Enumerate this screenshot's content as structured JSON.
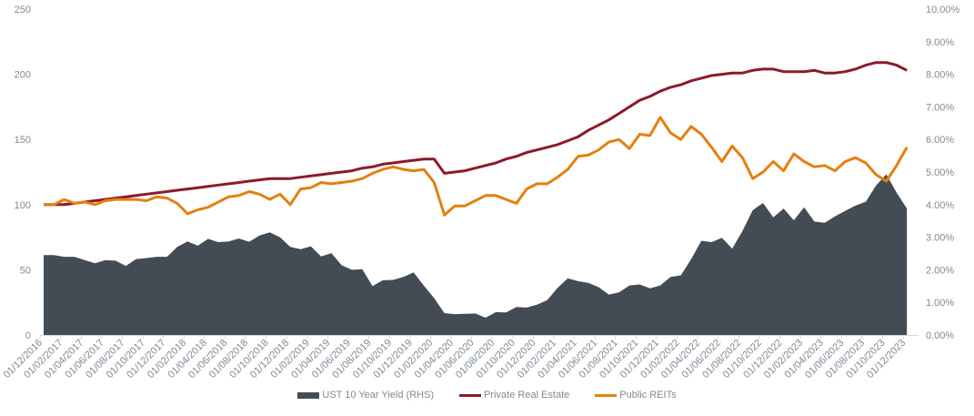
{
  "chart_data": {
    "type": "line",
    "title": "",
    "xlabel": "",
    "ylabel": "",
    "ylim": [
      0,
      250
    ],
    "y2lim": [
      0,
      10
    ],
    "yticks": [
      "0",
      "50",
      "100",
      "150",
      "200",
      "250"
    ],
    "y2ticks": [
      "0.00%",
      "1.00%",
      "2.00%",
      "3.00%",
      "4.00%",
      "5.00%",
      "6.00%",
      "7.00%",
      "8.00%",
      "9.00%",
      "10.00%"
    ],
    "x_start": "01/12/2016",
    "x_tick_labels": [
      "01/12/2016",
      "01/02/2017",
      "01/04/2017",
      "01/06/2017",
      "01/08/2017",
      "01/10/2017",
      "01/12/2017",
      "01/02/2018",
      "01/04/2018",
      "01/06/2018",
      "01/08/2018",
      "01/10/2018",
      "01/12/2018",
      "01/02/2019",
      "01/04/2019",
      "01/06/2019",
      "01/08/2019",
      "01/10/2019",
      "01/12/2019",
      "01/02/2020",
      "01/04/2020",
      "01/06/2020",
      "01/08/2020",
      "01/10/2020",
      "01/12/2020",
      "01/02/2021",
      "01/04/2021",
      "01/06/2021",
      "01/08/2021",
      "01/10/2021",
      "01/12/2021",
      "01/02/2022",
      "01/04/2022",
      "01/06/2022",
      "01/08/2022",
      "01/10/2022",
      "01/12/2022",
      "01/02/2023",
      "01/04/2023",
      "01/06/2023",
      "01/08/2023",
      "01/10/2023",
      "01/12/2023"
    ],
    "legend_position": "bottom",
    "grid": false,
    "series": [
      {
        "name": "UST 10 Year Yield (RHS)",
        "type": "area",
        "axis": "right",
        "unit": "%",
        "color": "#434c54",
        "values": [
          2.45,
          2.45,
          2.4,
          2.4,
          2.3,
          2.2,
          2.3,
          2.28,
          2.12,
          2.33,
          2.36,
          2.4,
          2.4,
          2.7,
          2.87,
          2.74,
          2.95,
          2.85,
          2.87,
          2.96,
          2.86,
          3.05,
          3.15,
          3.0,
          2.7,
          2.63,
          2.72,
          2.41,
          2.51,
          2.14,
          2.0,
          2.02,
          1.5,
          1.68,
          1.69,
          1.78,
          1.92,
          1.51,
          1.13,
          0.67,
          0.64,
          0.65,
          0.66,
          0.53,
          0.7,
          0.69,
          0.86,
          0.84,
          0.93,
          1.07,
          1.44,
          1.74,
          1.65,
          1.6,
          1.47,
          1.24,
          1.31,
          1.52,
          1.55,
          1.43,
          1.52,
          1.78,
          1.83,
          2.32,
          2.89,
          2.85,
          2.98,
          2.65,
          3.19,
          3.83,
          4.05,
          3.61,
          3.88,
          3.52,
          3.92,
          3.48,
          3.44,
          3.64,
          3.81,
          3.97,
          4.09,
          4.59,
          4.93,
          4.37,
          3.88
        ]
      },
      {
        "name": "Private Real Estate",
        "type": "line",
        "axis": "left",
        "color": "#8b1a2b",
        "values": [
          100,
          100,
          100,
          101,
          102,
          103,
          104,
          105,
          106,
          107,
          108,
          109,
          110,
          111,
          112,
          113,
          114,
          115,
          116,
          117,
          118,
          119,
          120,
          120,
          120,
          121,
          122,
          123,
          124,
          125,
          126,
          128,
          129,
          131,
          132,
          133,
          134,
          135,
          135,
          124,
          125,
          126,
          128,
          130,
          132,
          135,
          137,
          140,
          142,
          144,
          146,
          149,
          152,
          157,
          161,
          165,
          170,
          175,
          180,
          183,
          187,
          190,
          192,
          195,
          197,
          199,
          200,
          201,
          201,
          203,
          204,
          204,
          202,
          202,
          202,
          203,
          201,
          201,
          202,
          204,
          207,
          209,
          209,
          207,
          203
        ]
      },
      {
        "name": "Public REITs",
        "type": "line",
        "axis": "left",
        "color": "#e57f10",
        "values": [
          100,
          100,
          104,
          101,
          102,
          100,
          103,
          104,
          104,
          104,
          103,
          106,
          105,
          101,
          93,
          96,
          98,
          102,
          106,
          107,
          110,
          108,
          104,
          108,
          100,
          112,
          113,
          117,
          116,
          117,
          118,
          120,
          124,
          127,
          129,
          127,
          126,
          127,
          117,
          92,
          99,
          99,
          103,
          107,
          107,
          104,
          101,
          112,
          116,
          116,
          121,
          127,
          137,
          138,
          142,
          148,
          150,
          143,
          154,
          153,
          167,
          155,
          150,
          160,
          154,
          144,
          133,
          145,
          136,
          120,
          125,
          133,
          126,
          139,
          133,
          129,
          130,
          126,
          133,
          136,
          132,
          123,
          118,
          130,
          144
        ]
      }
    ]
  }
}
